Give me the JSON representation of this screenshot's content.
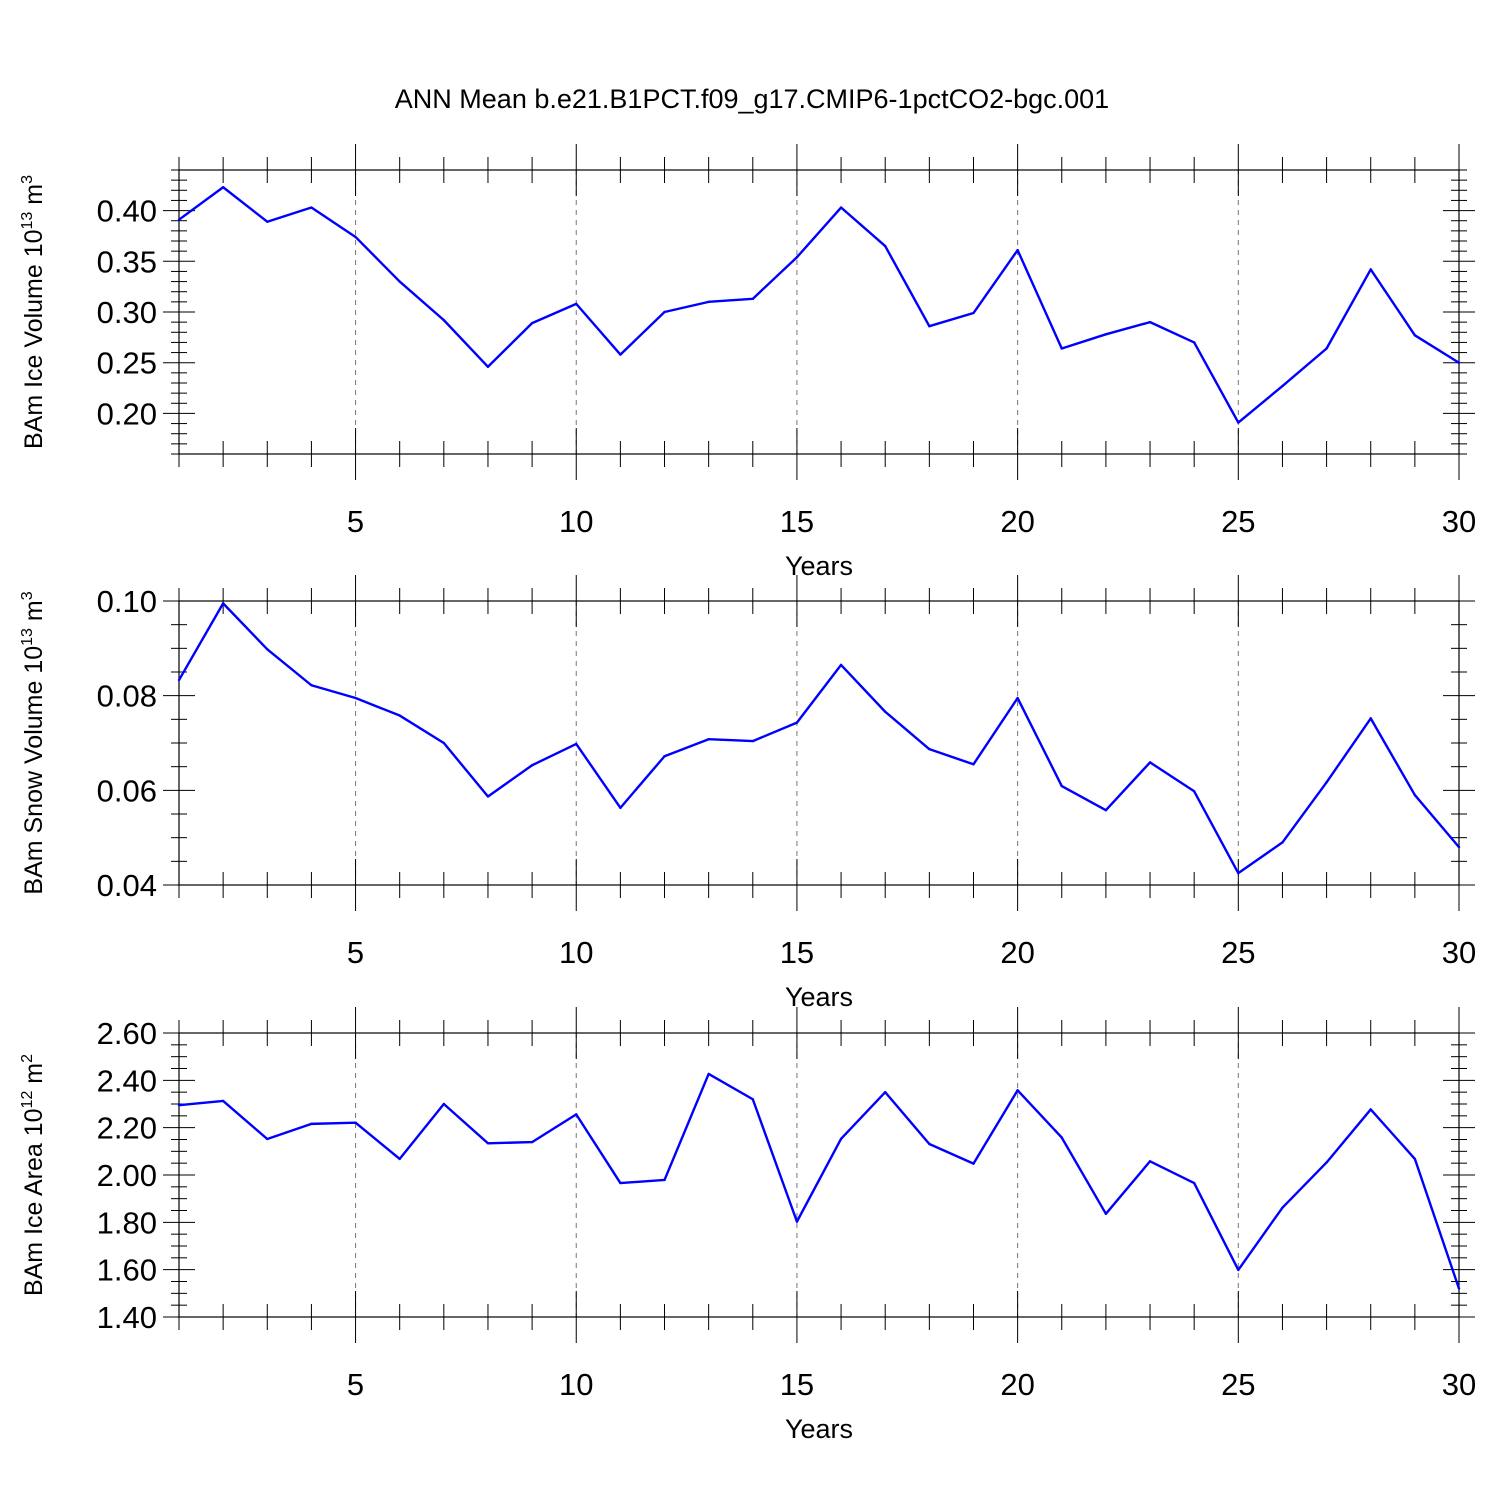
{
  "title": "ANN Mean b.e21.B1PCT.f09_g17.CMIP6-1pctCO2-bgc.001",
  "colors": {
    "series": "#0000ff",
    "grid": "#777777",
    "frame": "#000000"
  },
  "chart_data": [
    {
      "type": "line",
      "ylabel": {
        "main": "BAm Ice Volume 10",
        "exp": "13",
        "unit": " m",
        "unit_exp": "3"
      },
      "xlabel": "Years",
      "xlim": [
        1,
        30
      ],
      "ylim": [
        0.16,
        0.44
      ],
      "xticks": [
        5,
        10,
        15,
        20,
        25,
        30
      ],
      "xtick_labels": [
        "5",
        "10",
        "15",
        "20",
        "25",
        "30"
      ],
      "yticks": [
        0.2,
        0.25,
        0.3,
        0.35,
        0.4
      ],
      "ytick_labels": [
        "0.20",
        "0.25",
        "0.30",
        "0.35",
        "0.40"
      ],
      "yminor_step": 0.01,
      "grid": "dashed vertical at major x ticks",
      "x": [
        1,
        2,
        3,
        4,
        5,
        6,
        7,
        8,
        9,
        10,
        11,
        12,
        13,
        14,
        15,
        16,
        17,
        18,
        19,
        20,
        21,
        22,
        23,
        24,
        25,
        26,
        27,
        28,
        29,
        30
      ],
      "series": [
        {
          "values": [
            0.391,
            0.423,
            0.389,
            0.403,
            0.374,
            0.33,
            0.292,
            0.246,
            0.289,
            0.308,
            0.258,
            0.3,
            0.31,
            0.313,
            0.354,
            0.403,
            0.365,
            0.286,
            0.299,
            0.361,
            0.264,
            0.278,
            0.29,
            0.27,
            0.191,
            0.227,
            0.264,
            0.342,
            0.277,
            0.25
          ]
        }
      ]
    },
    {
      "type": "line",
      "ylabel": {
        "main": "BAm Snow Volume 10",
        "exp": "13",
        "unit": " m",
        "unit_exp": "3"
      },
      "xlabel": "Years",
      "xlim": [
        1,
        30
      ],
      "ylim": [
        0.04,
        0.1
      ],
      "xticks": [
        5,
        10,
        15,
        20,
        25,
        30
      ],
      "xtick_labels": [
        "5",
        "10",
        "15",
        "20",
        "25",
        "30"
      ],
      "yticks": [
        0.04,
        0.06,
        0.08,
        0.1
      ],
      "ytick_labels": [
        "0.04",
        "0.06",
        "0.08",
        "0.10"
      ],
      "yminor_step": 0.005,
      "grid": "dashed vertical at major x ticks",
      "x": [
        1,
        2,
        3,
        4,
        5,
        6,
        7,
        8,
        9,
        10,
        11,
        12,
        13,
        14,
        15,
        16,
        17,
        18,
        19,
        20,
        21,
        22,
        23,
        24,
        25,
        26,
        27,
        28,
        29,
        30
      ],
      "series": [
        {
          "values": [
            0.0833,
            0.0995,
            0.0898,
            0.0822,
            0.0795,
            0.0758,
            0.07,
            0.0587,
            0.0653,
            0.0698,
            0.0563,
            0.0672,
            0.0708,
            0.0704,
            0.0743,
            0.0865,
            0.0766,
            0.0687,
            0.0655,
            0.0795,
            0.0609,
            0.0558,
            0.0659,
            0.0598,
            0.0425,
            0.049,
            0.0617,
            0.0752,
            0.059,
            0.048
          ]
        }
      ]
    },
    {
      "type": "line",
      "ylabel": {
        "main": "BAm Ice Area 10",
        "exp": "12",
        "unit": " m",
        "unit_exp": "2"
      },
      "xlabel": "Years",
      "xlim": [
        1,
        30
      ],
      "ylim": [
        1.4,
        2.6
      ],
      "xticks": [
        5,
        10,
        15,
        20,
        25,
        30
      ],
      "xtick_labels": [
        "5",
        "10",
        "15",
        "20",
        "25",
        "30"
      ],
      "yticks": [
        1.4,
        1.6,
        1.8,
        2.0,
        2.2,
        2.4,
        2.6
      ],
      "ytick_labels": [
        "1.40",
        "1.60",
        "1.80",
        "2.00",
        "2.20",
        "2.40",
        "2.60"
      ],
      "yminor_step": 0.05,
      "grid": "dashed vertical at major x ticks",
      "x": [
        1,
        2,
        3,
        4,
        5,
        6,
        7,
        8,
        9,
        10,
        11,
        12,
        13,
        14,
        15,
        16,
        17,
        18,
        19,
        20,
        21,
        22,
        23,
        24,
        25,
        26,
        27,
        28,
        29,
        30
      ],
      "series": [
        {
          "values": [
            2.295,
            2.313,
            2.152,
            2.216,
            2.221,
            2.068,
            2.3,
            2.134,
            2.139,
            2.256,
            1.966,
            1.979,
            2.427,
            2.32,
            1.803,
            2.153,
            2.35,
            2.131,
            2.048,
            2.358,
            2.158,
            1.836,
            2.058,
            1.966,
            1.599,
            1.862,
            2.053,
            2.277,
            2.068,
            1.52
          ]
        }
      ]
    }
  ]
}
